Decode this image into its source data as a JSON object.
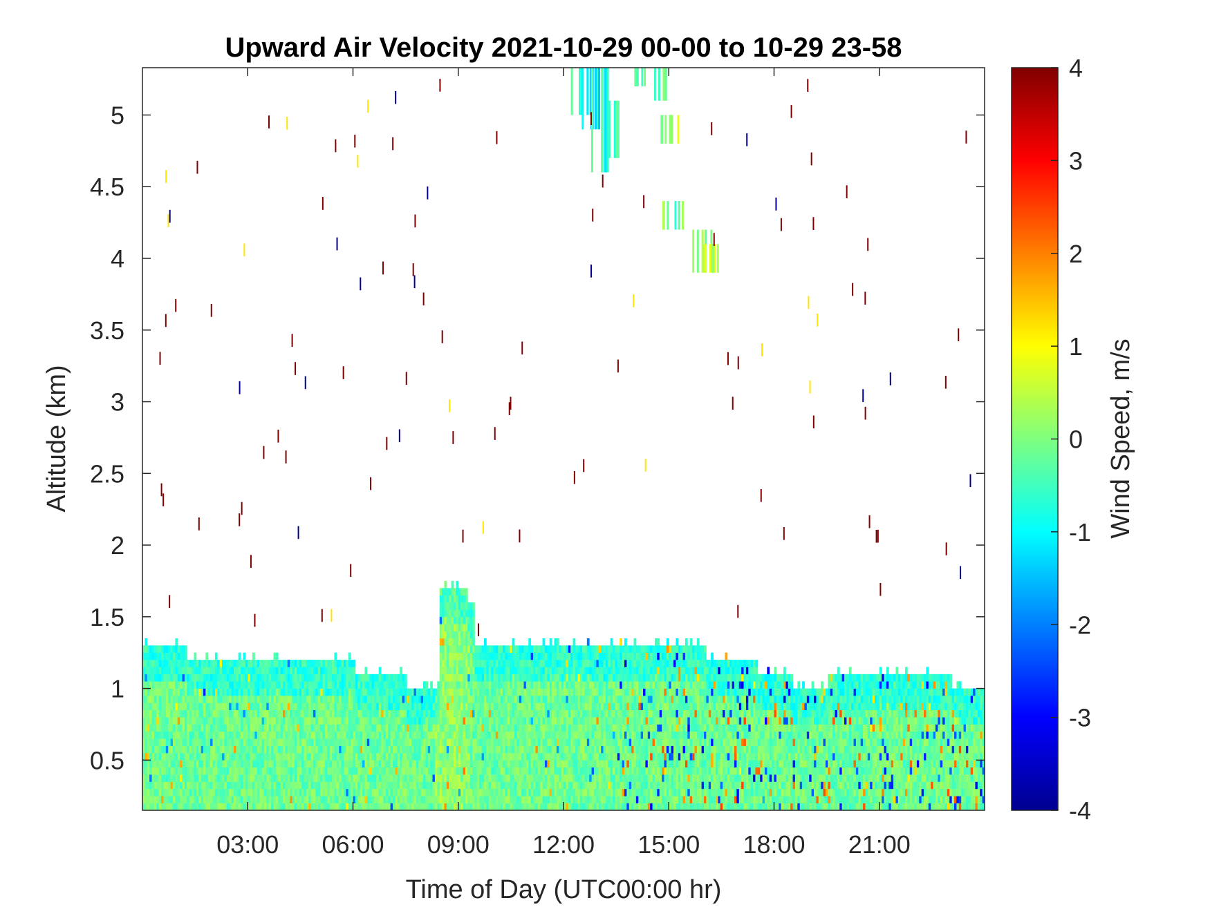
{
  "chart_data": {
    "type": "heatmap",
    "title": "Upward Air Velocity 2021-10-29 00-00 to 10-29 23-58",
    "xlabel": "Time of Day (UTC00:00 hr)",
    "ylabel": "Altitude (km)",
    "xlim": [
      0,
      24
    ],
    "ylim": [
      0.15,
      5.33
    ],
    "x_ticks": [
      3,
      6,
      9,
      12,
      15,
      18,
      21
    ],
    "x_tick_labels": [
      "03:00",
      "06:00",
      "09:00",
      "12:00",
      "15:00",
      "18:00",
      "21:00"
    ],
    "y_ticks": [
      0.5,
      1,
      1.5,
      2,
      2.5,
      3,
      3.5,
      4,
      4.5,
      5
    ],
    "y_tick_labels": [
      "0.5",
      "1",
      "1.5",
      "2",
      "2.5",
      "3",
      "3.5",
      "4",
      "4.5",
      "5"
    ],
    "grid": false,
    "colorbar": {
      "label": "Wind Speed, m/s",
      "colormap": "jet",
      "clim": [
        -4,
        4
      ],
      "ticks": [
        4,
        3,
        2,
        1,
        0,
        -1,
        -2,
        -3,
        -4
      ],
      "tick_labels": [
        "4",
        "3",
        "2",
        "1",
        "0",
        "-1",
        "-2",
        "-3",
        "-4"
      ]
    },
    "boundary_layer_top_km": {
      "time_hr": [
        0,
        1.2,
        3,
        4.5,
        6,
        7.5,
        8.3,
        8.4,
        9.2,
        9.4,
        11,
        12.5,
        14,
        15,
        16,
        17.5,
        18.5,
        19.5,
        21,
        22,
        23,
        24
      ],
      "top_km": [
        1.3,
        1.2,
        1.2,
        1.2,
        1.1,
        1.0,
        1.0,
        1.7,
        1.6,
        1.3,
        1.3,
        1.3,
        1.3,
        1.3,
        1.2,
        1.1,
        1.0,
        1.1,
        1.1,
        1.1,
        1.0,
        1.0
      ]
    },
    "upper_cloud_echoes": [
      {
        "time_hr": 12.5,
        "alt_km": 5.33,
        "alt_bottom_km": 5.0,
        "w_ms": -0.6
      },
      {
        "time_hr": 12.8,
        "alt_km": 5.33,
        "alt_bottom_km": 4.9,
        "w_ms": -0.9
      },
      {
        "time_hr": 13.0,
        "alt_km": 5.33,
        "alt_bottom_km": 4.6,
        "w_ms": -0.8
      },
      {
        "time_hr": 13.4,
        "alt_km": 5.1,
        "alt_bottom_km": 4.7,
        "w_ms": -0.2
      },
      {
        "time_hr": 14.3,
        "alt_km": 5.33,
        "alt_bottom_km": 5.2,
        "w_ms": -0.1
      },
      {
        "time_hr": 14.6,
        "alt_km": 5.33,
        "alt_bottom_km": 5.1,
        "w_ms": -0.4
      },
      {
        "time_hr": 15.0,
        "alt_km": 5.0,
        "alt_bottom_km": 4.8,
        "w_ms": 0.3
      },
      {
        "time_hr": 15.1,
        "alt_km": 4.4,
        "alt_bottom_km": 4.2,
        "w_ms": -0.1
      },
      {
        "time_hr": 15.9,
        "alt_km": 4.2,
        "alt_bottom_km": 3.9,
        "w_ms": 0.2
      },
      {
        "time_hr": 16.1,
        "alt_km": 4.1,
        "alt_bottom_km": 3.9,
        "w_ms": 0.3
      }
    ]
  }
}
